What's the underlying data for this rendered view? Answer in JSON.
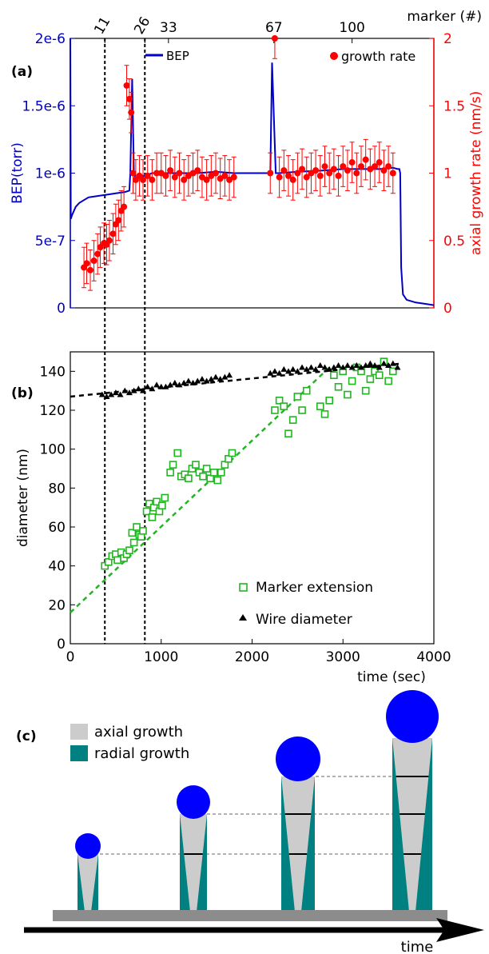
{
  "colors": {
    "bep": "#0000c8",
    "growth": "#ff0000",
    "marker": "#22b522",
    "wire": "#000000",
    "axial": "#cccccc",
    "radial": "#008080",
    "dot": "#0000ff",
    "substrate": "#8c8c8c"
  },
  "panel_labels": {
    "a": "(a)",
    "b": "(b)",
    "c": "(c)"
  },
  "top_axis": {
    "label": "marker (#)",
    "ticks": [
      {
        "label": "11",
        "x": 380
      },
      {
        "label": "26",
        "x": 820
      },
      {
        "label": "33",
        "x": 1080
      },
      {
        "label": "67",
        "x": 2240
      },
      {
        "label": "100",
        "x": 3100
      }
    ]
  },
  "chart_data": [
    {
      "panel": "a",
      "type": "line",
      "xlim": [
        0,
        4000
      ],
      "y_left": {
        "label": "BEP(torr)",
        "lim": [
          0,
          2e-06
        ],
        "ticks": [
          0,
          5e-07,
          1e-06,
          1.5e-06,
          2e-06
        ],
        "tick_labels": [
          "0",
          "5e-7",
          "1e-6",
          "1.5e-6",
          "2e-6"
        ]
      },
      "y_right": {
        "label": "axial growth rate (nm/s)",
        "lim": [
          0,
          2
        ],
        "ticks": [
          0,
          0.5,
          1,
          1.5,
          2
        ],
        "tick_labels": [
          "0",
          "0.5",
          "1",
          "1.5",
          "2"
        ]
      },
      "legend": "top-right",
      "vlines_x": [
        380,
        820
      ],
      "series": [
        {
          "name": "BEP",
          "axis": "left",
          "style": "line",
          "x": [
            0,
            5,
            20,
            60,
            100,
            150,
            200,
            300,
            400,
            500,
            600,
            650,
            660,
            680,
            700,
            720,
            760,
            820,
            900,
            1000,
            1200,
            1400,
            1600,
            1800,
            2000,
            2150,
            2200,
            2220,
            2260,
            2300,
            2500,
            2800,
            3000,
            3200,
            3400,
            3550,
            3600,
            3620,
            3630,
            3640,
            3660,
            3700,
            3800,
            3900,
            4000
          ],
          "y": [
            2e-06,
            6.6e-07,
            6.9e-07,
            7.5e-07,
            7.8e-07,
            8e-07,
            8.2e-07,
            8.3e-07,
            8.4e-07,
            8.5e-07,
            8.6e-07,
            8.7e-07,
            1e-06,
            1.7e-06,
            1e-06,
            9.5e-07,
            9.8e-07,
            9.8e-07,
            1e-06,
            1e-06,
            1e-06,
            1e-06,
            1.01e-06,
            1e-06,
            1e-06,
            1e-06,
            1e-06,
            1.82e-06,
            1e-06,
            1e-06,
            1.01e-06,
            1.02e-06,
            1.03e-06,
            1.03e-06,
            1.03e-06,
            1.04e-06,
            1.03e-06,
            1.03e-06,
            1e-06,
            3e-07,
            1e-07,
            6e-08,
            4e-08,
            3e-08,
            2e-08
          ]
        },
        {
          "name": "growth rate",
          "axis": "right",
          "style": "scatter-errorbar",
          "x": [
            150,
            180,
            220,
            260,
            300,
            330,
            370,
            400,
            430,
            470,
            500,
            530,
            560,
            590,
            620,
            650,
            670,
            690,
            720,
            760,
            800,
            850,
            900,
            950,
            1000,
            1050,
            1100,
            1150,
            1200,
            1250,
            1300,
            1350,
            1400,
            1450,
            1500,
            1550,
            1600,
            1650,
            1700,
            1750,
            1800,
            2200,
            2250,
            2300,
            2350,
            2400,
            2450,
            2500,
            2550,
            2600,
            2650,
            2700,
            2750,
            2800,
            2850,
            2900,
            2950,
            3000,
            3050,
            3100,
            3150,
            3200,
            3250,
            3300,
            3350,
            3400,
            3450,
            3500,
            3550
          ],
          "y": [
            0.3,
            0.33,
            0.28,
            0.35,
            0.4,
            0.45,
            0.48,
            0.47,
            0.5,
            0.55,
            0.62,
            0.65,
            0.72,
            0.75,
            1.65,
            1.55,
            1.45,
            1.0,
            0.95,
            0.98,
            0.95,
            0.98,
            0.95,
            1.0,
            1.0,
            0.98,
            1.02,
            0.97,
            1.0,
            0.95,
            0.98,
            1.0,
            1.02,
            0.97,
            0.95,
            0.98,
            1.0,
            0.96,
            0.98,
            0.95,
            0.97,
            1.0,
            2.0,
            0.97,
            1.02,
            0.98,
            0.95,
            1.0,
            1.03,
            0.97,
            1.0,
            1.02,
            0.98,
            1.05,
            1.0,
            1.03,
            0.98,
            1.05,
            1.02,
            1.08,
            1.0,
            1.05,
            1.1,
            1.03,
            1.05,
            1.08,
            1.02,
            1.05,
            1.0
          ],
          "error": 0.15
        }
      ]
    },
    {
      "panel": "b",
      "type": "scatter",
      "xlabel": "time (sec)",
      "ylabel": "diameter (nm)",
      "xlim": [
        0,
        4000
      ],
      "ylim": [
        0,
        150
      ],
      "xticks": [
        0,
        1000,
        2000,
        3000,
        4000
      ],
      "yticks": [
        0,
        20,
        40,
        60,
        80,
        100,
        120,
        140
      ],
      "legend": "bottom-right",
      "series": [
        {
          "name": "Marker extension",
          "marker": "open-square",
          "x": [
            380,
            420,
            460,
            500,
            520,
            560,
            590,
            620,
            650,
            680,
            700,
            730,
            760,
            780,
            800,
            840,
            870,
            900,
            920,
            950,
            980,
            1010,
            1040,
            1100,
            1130,
            1180,
            1220,
            1260,
            1300,
            1340,
            1380,
            1420,
            1460,
            1500,
            1540,
            1580,
            1620,
            1660,
            1700,
            1740,
            1780,
            2250,
            2300,
            2350,
            2400,
            2450,
            2500,
            2550,
            2600,
            2750,
            2800,
            2850,
            2900,
            2950,
            3000,
            3050,
            3100,
            3150,
            3200,
            3250,
            3300,
            3350,
            3400,
            3450,
            3500,
            3550
          ],
          "y": [
            40,
            42,
            45,
            46,
            43,
            47,
            44,
            46,
            48,
            57,
            52,
            60,
            56,
            55,
            58,
            68,
            72,
            65,
            70,
            73,
            68,
            71,
            75,
            88,
            92,
            98,
            86,
            87,
            85,
            90,
            92,
            88,
            86,
            90,
            85,
            88,
            84,
            88,
            92,
            95,
            98,
            120,
            125,
            122,
            108,
            115,
            127,
            120,
            130,
            122,
            118,
            125,
            138,
            132,
            140,
            128,
            135,
            142,
            140,
            130,
            136,
            140,
            138,
            145,
            135,
            140
          ]
        },
        {
          "name": "Wire diameter",
          "marker": "filled-triangle",
          "x": [
            350,
            400,
            450,
            500,
            550,
            600,
            650,
            700,
            750,
            800,
            850,
            900,
            950,
            1000,
            1050,
            1100,
            1150,
            1200,
            1250,
            1300,
            1350,
            1400,
            1450,
            1500,
            1550,
            1600,
            1650,
            1700,
            1750,
            2200,
            2250,
            2300,
            2350,
            2400,
            2450,
            2500,
            2550,
            2600,
            2650,
            2700,
            2750,
            2800,
            2850,
            2900,
            2950,
            3000,
            3050,
            3100,
            3150,
            3200,
            3250,
            3300,
            3350,
            3400,
            3450,
            3500,
            3550,
            3600
          ],
          "y": [
            128,
            127,
            128,
            129,
            128,
            130,
            129,
            130,
            131,
            130,
            132,
            131,
            133,
            132,
            132,
            133,
            134,
            133,
            134,
            135,
            134,
            135,
            136,
            135,
            136,
            137,
            136,
            137,
            138,
            139,
            140,
            139,
            141,
            140,
            141,
            140,
            142,
            141,
            142,
            141,
            143,
            142,
            141,
            142,
            143,
            142,
            143,
            142,
            143,
            142,
            143,
            144,
            143,
            142,
            144,
            143,
            144,
            142
          ]
        },
        {
          "name": "",
          "style": "dashed-fit",
          "color_key": "marker",
          "x": [
            0,
            2850
          ],
          "y": [
            16,
            142
          ]
        },
        {
          "name": "",
          "style": "dashed-fit",
          "color_key": "wire",
          "x": [
            0,
            3650
          ],
          "y": [
            127,
            144
          ]
        }
      ]
    }
  ],
  "diagram_c": {
    "legend": [
      {
        "label": "axial growth",
        "color_key": "axial"
      },
      {
        "label": "radial growth",
        "color_key": "radial"
      }
    ],
    "stages": 4,
    "arrow_label": "time"
  }
}
